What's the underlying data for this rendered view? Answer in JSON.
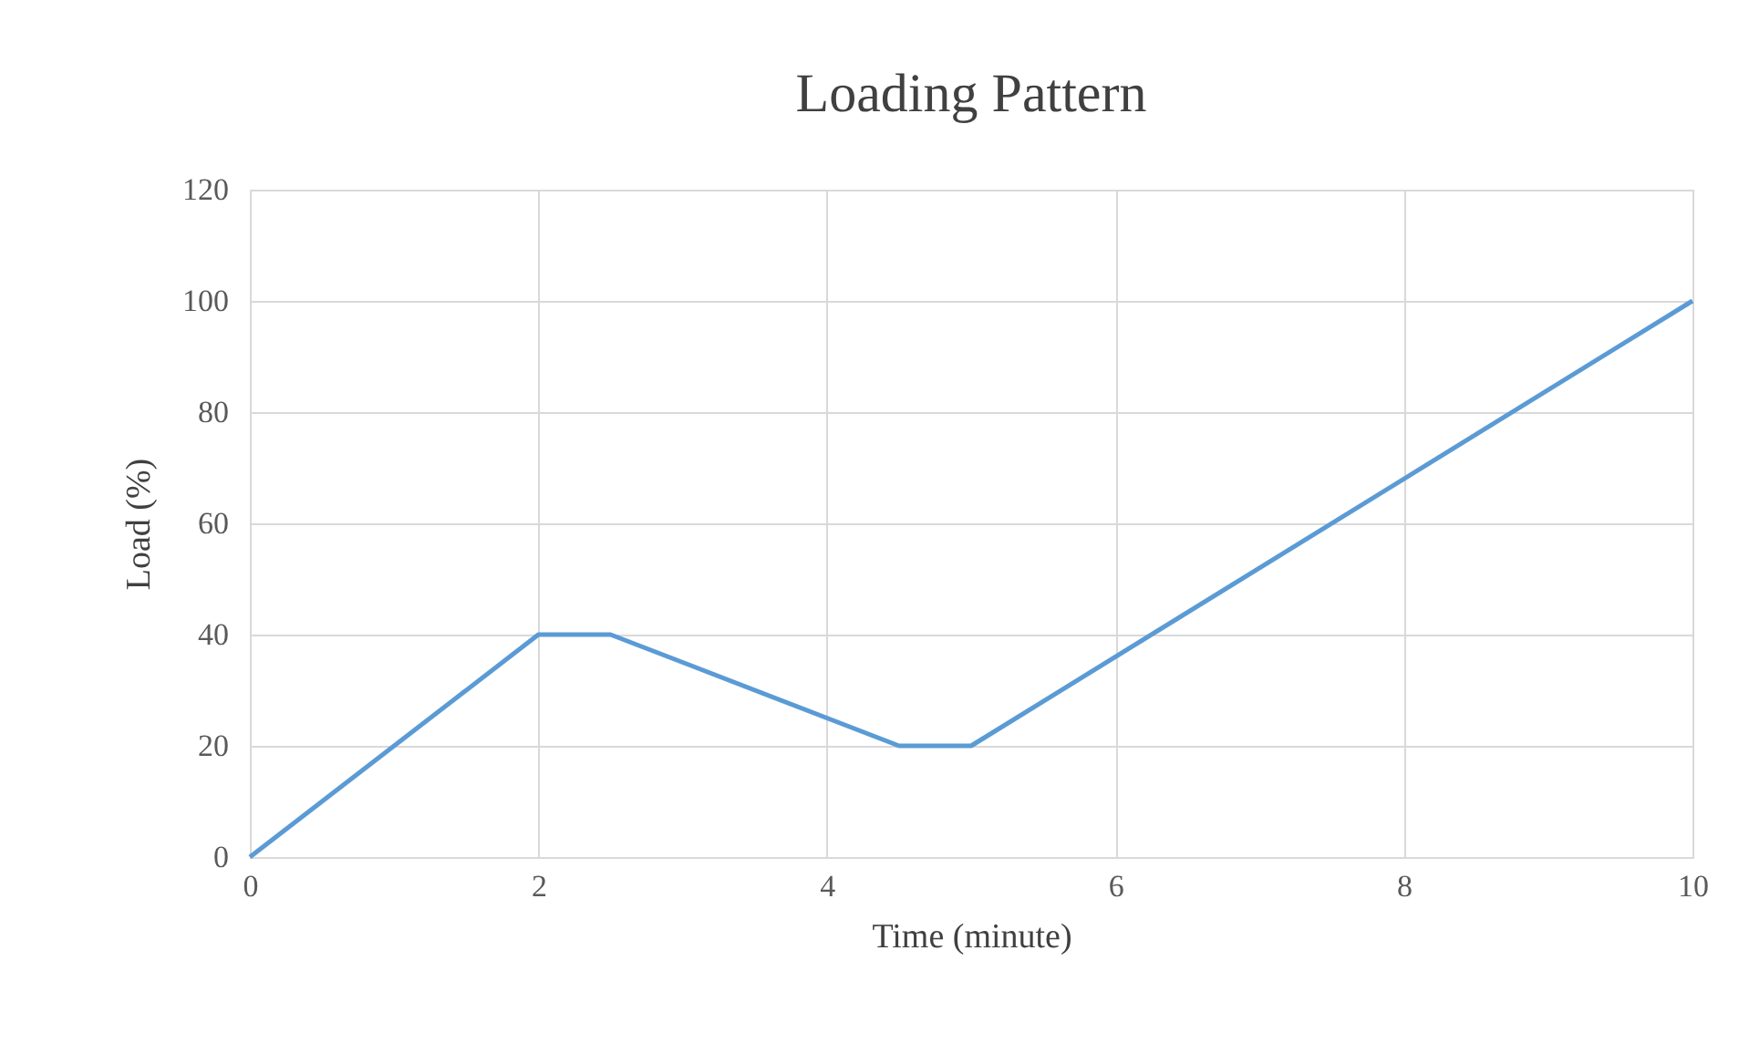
{
  "chart_data": {
    "type": "line",
    "title": "Loading Pattern",
    "xlabel": "Time (minute)",
    "ylabel": "Load  (%)",
    "x": [
      0,
      2,
      2.5,
      4.5,
      5,
      10
    ],
    "series": [
      {
        "color": "#5b9bd5",
        "values": [
          0,
          40,
          40,
          20,
          20,
          100
        ]
      }
    ],
    "xlim": [
      0,
      10
    ],
    "xticks": [
      0,
      2,
      4,
      6,
      8,
      10
    ],
    "ylim": [
      0,
      120
    ],
    "yticks": [
      0,
      20,
      40,
      60,
      80,
      100,
      120
    ],
    "grid": true,
    "marker": "none",
    "line_style": "solid"
  }
}
